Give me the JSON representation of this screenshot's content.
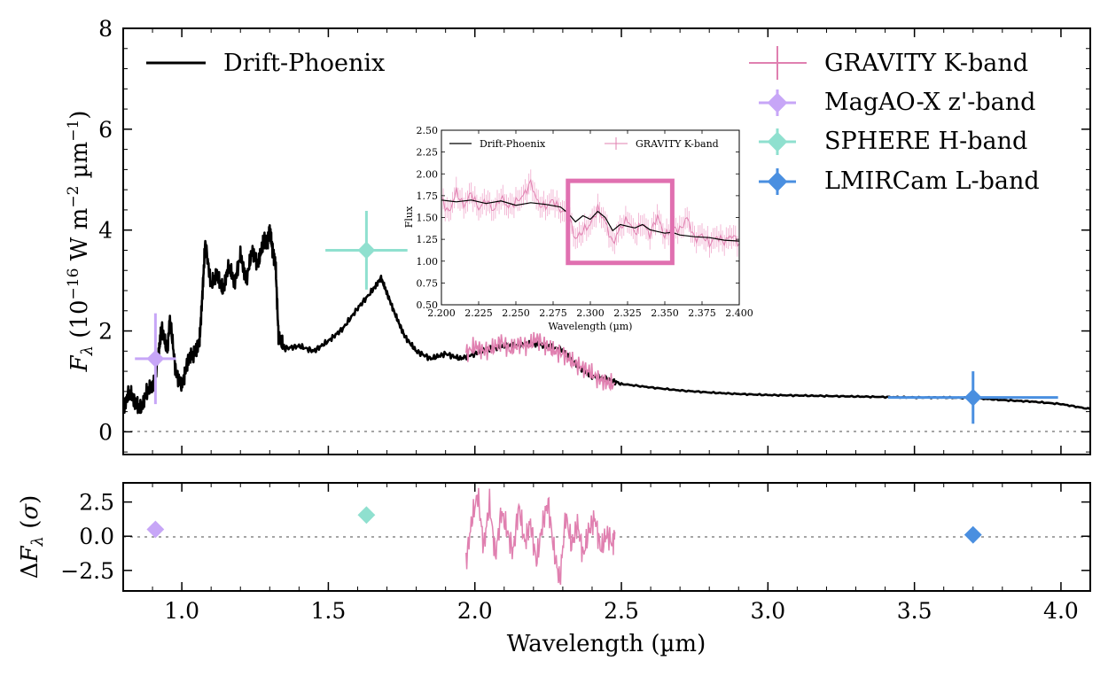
{
  "chart_data": [
    {
      "id": "main",
      "type": "line",
      "xlabel": "Wavelength (µm)",
      "ylabel_parts": {
        "symbol": "F",
        "sub": "λ",
        "open": " (10",
        "exp1": "−16",
        "mid": " W m",
        "exp2": "−2",
        "um": " µm",
        "exp3": "−1",
        "close": ")"
      },
      "xlim": [
        0.8,
        4.1
      ],
      "ylim": [
        -0.45,
        8.0
      ],
      "xticks": [
        1.0,
        1.5,
        2.0,
        2.5,
        3.0,
        3.5,
        4.0
      ],
      "xtick_labels": [
        "1.0",
        "1.5",
        "2.0",
        "2.5",
        "3.0",
        "3.5",
        "4.0"
      ],
      "yticks": [
        0,
        2,
        4,
        6,
        8
      ],
      "ytick_labels": [
        "0",
        "2",
        "4",
        "6",
        "8"
      ],
      "zero_line": true,
      "legend_left": "top-left",
      "legend_right": "top-right",
      "model": {
        "name": "Drift-Phoenix",
        "color": "#000000",
        "x": [
          0.8,
          0.82,
          0.84,
          0.86,
          0.88,
          0.9,
          0.92,
          0.93,
          0.95,
          0.96,
          0.98,
          1.0,
          1.02,
          1.04,
          1.06,
          1.07,
          1.08,
          1.1,
          1.12,
          1.14,
          1.16,
          1.18,
          1.2,
          1.22,
          1.24,
          1.26,
          1.28,
          1.29,
          1.3,
          1.31,
          1.32,
          1.33,
          1.35,
          1.4,
          1.45,
          1.5,
          1.55,
          1.6,
          1.65,
          1.68,
          1.7,
          1.73,
          1.76,
          1.8,
          1.85,
          1.9,
          1.95,
          2.0,
          2.05,
          2.1,
          2.15,
          2.2,
          2.25,
          2.3,
          2.35,
          2.4,
          2.45,
          2.5,
          2.6,
          2.7,
          2.8,
          2.9,
          3.0,
          3.1,
          3.2,
          3.3,
          3.4,
          3.5,
          3.6,
          3.7,
          3.8,
          3.9,
          4.0,
          4.1
        ],
        "y": [
          0.45,
          0.8,
          0.6,
          0.45,
          0.8,
          0.9,
          1.45,
          2.1,
          1.6,
          2.25,
          1.15,
          0.9,
          1.4,
          1.55,
          1.75,
          2.7,
          3.75,
          2.9,
          3.15,
          2.8,
          3.3,
          2.95,
          3.5,
          3.0,
          3.6,
          3.3,
          3.85,
          3.7,
          4.0,
          3.6,
          3.3,
          1.9,
          1.65,
          1.7,
          1.6,
          1.8,
          2.05,
          2.45,
          2.8,
          3.05,
          2.75,
          2.3,
          1.9,
          1.6,
          1.45,
          1.55,
          1.45,
          1.55,
          1.65,
          1.7,
          1.72,
          1.75,
          1.7,
          1.62,
          1.3,
          1.1,
          1.05,
          0.95,
          0.88,
          0.82,
          0.78,
          0.75,
          0.73,
          0.72,
          0.71,
          0.7,
          0.69,
          0.68,
          0.68,
          0.67,
          0.63,
          0.6,
          0.55,
          0.45
        ]
      },
      "gravity": {
        "name": "GRAVITY K-band",
        "color": "#e080b0",
        "x": [
          1.97,
          2.0,
          2.03,
          2.06,
          2.09,
          2.12,
          2.15,
          2.18,
          2.21,
          2.24,
          2.27,
          2.3,
          2.33,
          2.36,
          2.39,
          2.42,
          2.45,
          2.48
        ],
        "y": [
          1.55,
          1.7,
          1.6,
          1.65,
          1.8,
          1.62,
          1.75,
          1.7,
          1.85,
          1.72,
          1.6,
          1.55,
          1.4,
          1.3,
          1.2,
          1.05,
          0.98,
          0.92
        ]
      },
      "photometry": [
        {
          "name": "MagAO-X z'-band",
          "color": "#c7a6f7",
          "x": 0.91,
          "y": 1.45,
          "xerr": 0.07,
          "yerr": 0.9
        },
        {
          "name": "SPHERE H-band",
          "color": "#8fe0cf",
          "x": 1.63,
          "y": 3.6,
          "xerr": 0.14,
          "yerr": 0.78
        },
        {
          "name": "LMIRCam L-band",
          "color": "#4a8fe0",
          "x": 3.7,
          "y": 0.68,
          "xerr": 0.29,
          "yerr": 0.52
        }
      ]
    },
    {
      "id": "residuals",
      "type": "scatter",
      "ylabel_parts": {
        "delta": "Δ",
        "symbol": "F",
        "sub": "λ",
        "open": " (",
        "sigma": "σ",
        "close": ")"
      },
      "xlabel": "Wavelength (µm)",
      "xlim": [
        0.8,
        4.1
      ],
      "ylim": [
        -4.0,
        3.9
      ],
      "yticks": [
        2.5,
        0.0,
        -2.5
      ],
      "ytick_labels": [
        "2.5",
        "0.0",
        "−2.5"
      ],
      "points": [
        {
          "name": "MagAO-X z'-band",
          "x": 0.91,
          "y": 0.5,
          "color": "#c7a6f7"
        },
        {
          "name": "SPHERE H-band",
          "x": 1.63,
          "y": 1.55,
          "color": "#8fe0cf"
        },
        {
          "name": "LMIRCam L-band",
          "x": 3.7,
          "y": 0.1,
          "color": "#4a8fe0"
        }
      ],
      "gravity_residual": {
        "color": "#e080b0",
        "x": [
          1.97,
          1.99,
          2.01,
          2.03,
          2.05,
          2.07,
          2.09,
          2.11,
          2.13,
          2.15,
          2.17,
          2.19,
          2.21,
          2.23,
          2.25,
          2.27,
          2.29,
          2.31,
          2.33,
          2.35,
          2.37,
          2.39,
          2.41,
          2.43,
          2.45,
          2.47,
          2.48
        ],
        "y": [
          -1.8,
          1.2,
          3.1,
          -0.8,
          2.4,
          -1.5,
          1.8,
          0.4,
          -1.2,
          2.2,
          -0.5,
          1.0,
          -1.9,
          0.8,
          2.5,
          -1.1,
          -3.3,
          1.6,
          -0.7,
          0.9,
          -1.4,
          0.5,
          1.3,
          -1.0,
          0.2,
          -0.6,
          0.6
        ]
      }
    },
    {
      "id": "inset",
      "type": "line",
      "xlabel": "Wavelength (µm)",
      "ylabel": "Flux",
      "xlim": [
        2.2,
        2.4
      ],
      "ylim": [
        0.5,
        2.5
      ],
      "xticks": [
        2.2,
        2.225,
        2.25,
        2.275,
        2.3,
        2.325,
        2.35,
        2.375,
        2.4
      ],
      "xtick_labels": [
        "2.200",
        "2.225",
        "2.250",
        "2.275",
        "2.300",
        "2.325",
        "2.350",
        "2.375",
        "2.400"
      ],
      "yticks": [
        0.5,
        0.75,
        1.0,
        1.25,
        1.5,
        1.75,
        2.0,
        2.25,
        2.5
      ],
      "ytick_labels": [
        "0.50",
        "0.75",
        "1.00",
        "1.25",
        "1.50",
        "1.75",
        "2.00",
        "2.25",
        "2.50"
      ],
      "legend": [
        {
          "name": "Drift-Phoenix",
          "color": "#000000"
        },
        {
          "name": "GRAVITY K-band",
          "color": "#e080b0"
        }
      ],
      "model": {
        "x": [
          2.2,
          2.21,
          2.22,
          2.23,
          2.24,
          2.25,
          2.26,
          2.27,
          2.28,
          2.285,
          2.29,
          2.295,
          2.3,
          2.305,
          2.31,
          2.315,
          2.32,
          2.325,
          2.33,
          2.335,
          2.34,
          2.345,
          2.35,
          2.355,
          2.36,
          2.37,
          2.38,
          2.39,
          2.4
        ],
        "y": [
          1.7,
          1.68,
          1.7,
          1.66,
          1.69,
          1.64,
          1.67,
          1.65,
          1.62,
          1.55,
          1.45,
          1.52,
          1.48,
          1.57,
          1.5,
          1.35,
          1.42,
          1.4,
          1.38,
          1.42,
          1.36,
          1.34,
          1.32,
          1.33,
          1.3,
          1.28,
          1.27,
          1.24,
          1.23
        ]
      },
      "data": {
        "x": [
          2.2,
          2.205,
          2.21,
          2.215,
          2.22,
          2.225,
          2.23,
          2.235,
          2.24,
          2.245,
          2.25,
          2.255,
          2.26,
          2.265,
          2.27,
          2.275,
          2.28,
          2.285,
          2.29,
          2.295,
          2.3,
          2.305,
          2.31,
          2.315,
          2.32,
          2.325,
          2.33,
          2.335,
          2.34,
          2.345,
          2.35,
          2.355,
          2.36,
          2.365,
          2.37,
          2.375,
          2.38,
          2.385,
          2.39,
          2.395,
          2.4
        ],
        "y": [
          1.72,
          1.55,
          1.8,
          1.63,
          1.78,
          1.6,
          1.7,
          1.58,
          1.73,
          1.62,
          1.68,
          1.75,
          1.9,
          1.66,
          1.62,
          1.7,
          1.58,
          1.55,
          1.25,
          1.35,
          1.42,
          1.6,
          1.45,
          1.2,
          1.38,
          1.48,
          1.32,
          1.44,
          1.3,
          1.52,
          1.28,
          1.4,
          1.35,
          1.5,
          1.25,
          1.3,
          1.2,
          1.28,
          1.22,
          1.3,
          1.2
        ],
        "err": 0.12
      },
      "highlight_box": {
        "x0": 2.285,
        "x1": 2.355,
        "y0": 0.98,
        "y1": 1.92,
        "color": "#e070b0"
      }
    }
  ]
}
